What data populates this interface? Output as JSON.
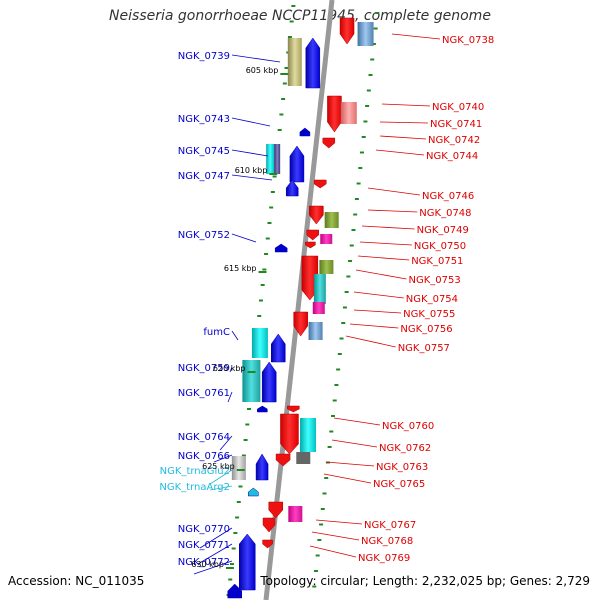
{
  "title": "Neisseria gonorrhoeae NCCP11945, complete genome",
  "accession": "Accession: NC_011035",
  "topology": "Topology: circular; Length: 2,232,025 bp; Genes: 2,729",
  "colors": {
    "forward_label": "#0000cc",
    "reverse_label": "#dd0000",
    "trna_label": "#22bbdd",
    "backbone": "#999999",
    "tick": "#228822"
  },
  "kbp_marks": [
    "605 kbp",
    "610 kbp",
    "615 kbp",
    "620 kbp",
    "625 kbp",
    "630 kbp"
  ],
  "left_labels": [
    {
      "text": "NGK_0739",
      "type": "gene"
    },
    {
      "text": "NGK_0743",
      "type": "gene"
    },
    {
      "text": "NGK_0745",
      "type": "gene"
    },
    {
      "text": "NGK_0747",
      "type": "gene"
    },
    {
      "text": "NGK_0752",
      "type": "gene"
    },
    {
      "text": "fumC",
      "type": "gene"
    },
    {
      "text": "NGK_0759",
      "type": "gene"
    },
    {
      "text": "NGK_0761",
      "type": "gene"
    },
    {
      "text": "NGK_0764",
      "type": "gene"
    },
    {
      "text": "NGK_0766",
      "type": "gene"
    },
    {
      "text": "NGK_trnaGlu2",
      "type": "trna"
    },
    {
      "text": "NGK_trnaArg2",
      "type": "trna"
    },
    {
      "text": "NGK_0770",
      "type": "gene"
    },
    {
      "text": "NGK_0771",
      "type": "gene"
    },
    {
      "text": "NGK_0772",
      "type": "gene"
    }
  ],
  "right_labels": [
    "NGK_0738",
    "NGK_0740",
    "NGK_0741",
    "NGK_0742",
    "NGK_0744",
    "NGK_0746",
    "NGK_0748",
    "NGK_0749",
    "NGK_0750",
    "NGK_0751",
    "NGK_0753",
    "NGK_0754",
    "NGK_0755",
    "NGK_0756",
    "NGK_0757",
    "NGK_0760",
    "NGK_0762",
    "NGK_0763",
    "NGK_0765",
    "NGK_0767",
    "NGK_0768",
    "NGK_0769"
  ]
}
